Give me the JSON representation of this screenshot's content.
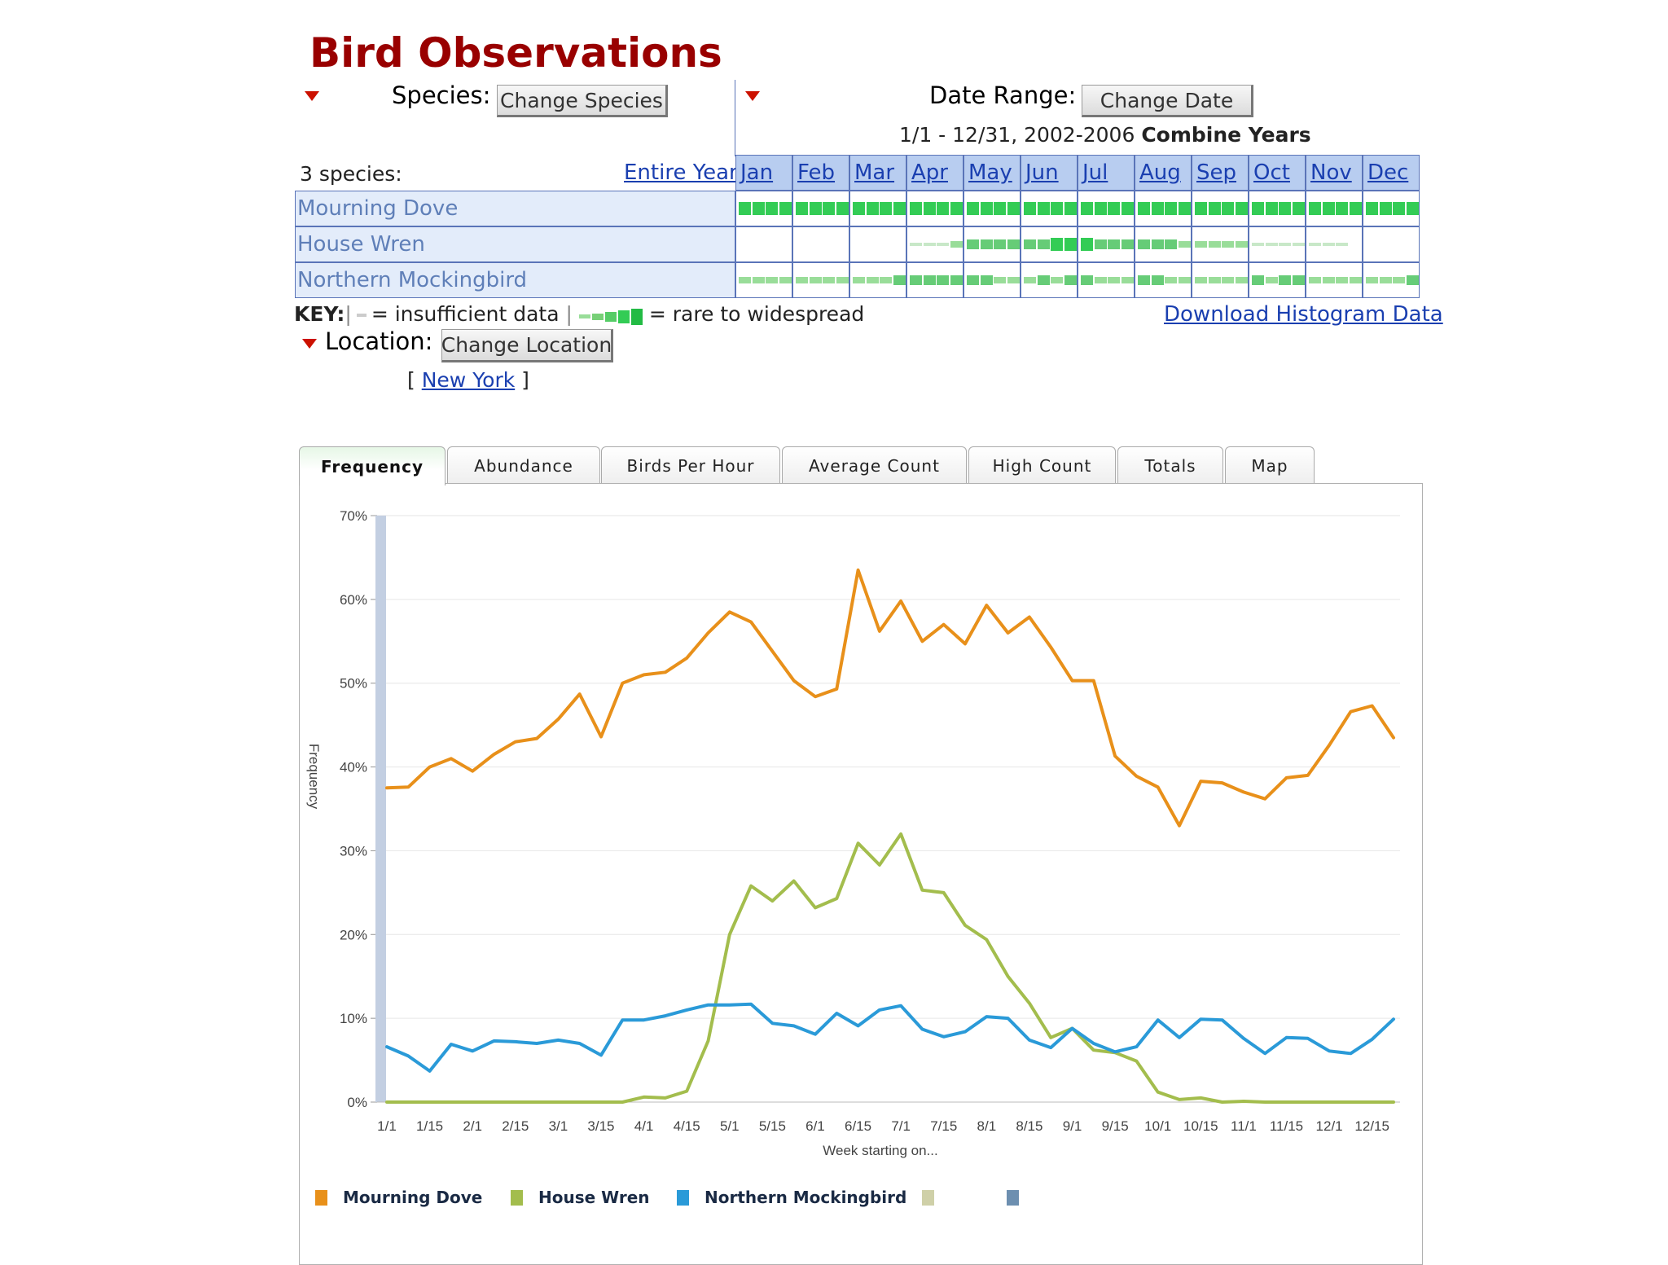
{
  "page_title": "Bird Observations",
  "species_section": {
    "label": "Species:",
    "button": "Change Species",
    "count_label": "3 species:",
    "entire_year": "Entire Year"
  },
  "date_section": {
    "label": "Date Range:",
    "button": "Change Date",
    "range_text": "1/1 - 12/31, 2002-2006",
    "range_bold": "Combine Years"
  },
  "months": [
    "Jan",
    "Feb",
    "Mar",
    "Apr",
    "May",
    "Jun",
    "Jul",
    "Aug",
    "Sep",
    "Oct",
    "Nov",
    "Dec"
  ],
  "species": [
    "Mourning Dove",
    "House Wren",
    "Northern Mockingbird"
  ],
  "key": {
    "prefix": "KEY:",
    "insufficient": "= insufficient data",
    "rare": "= rare to widespread"
  },
  "download_link": "Download Histogram Data",
  "location_section": {
    "label": "Location:",
    "button": "Change Location",
    "bracket_open": "[",
    "link": "New York",
    "bracket_close": "]"
  },
  "tabs": [
    "Frequency",
    "Abundance",
    "Birds Per Hour",
    "Average Count",
    "High Count",
    "Totals",
    "Map"
  ],
  "active_tab": "Frequency",
  "colors": {
    "title": "#990000",
    "dove": "#e8901a",
    "wren": "#a3bd4d",
    "mockingbird": "#2a9ad8",
    "histogram_green": "#33cc55",
    "histogram_light": "#99dd99"
  },
  "chart_data": {
    "type": "line",
    "ylabel": "Frequency",
    "xlabel": "Week starting on...",
    "ylim": [
      0,
      70
    ],
    "y_ticks": [
      "0%",
      "10%",
      "20%",
      "30%",
      "40%",
      "50%",
      "60%",
      "70%"
    ],
    "x_ticks": [
      "1/1",
      "1/15",
      "2/1",
      "2/15",
      "3/1",
      "3/15",
      "4/1",
      "4/15",
      "5/1",
      "5/15",
      "6/1",
      "6/15",
      "7/1",
      "7/15",
      "8/1",
      "8/15",
      "9/1",
      "9/15",
      "10/1",
      "10/15",
      "11/1",
      "11/15",
      "12/1",
      "12/15"
    ],
    "grid": true,
    "legend_position": "bottom",
    "series": [
      {
        "name": "Mourning Dove",
        "color": "#e8901a",
        "values": [
          37.5,
          37.6,
          40,
          41,
          39.5,
          41.5,
          43,
          43.4,
          45.7,
          48.7,
          43.6,
          50,
          51,
          51.3,
          53,
          56,
          58.5,
          57.3,
          53.8,
          50.3,
          48.4,
          49.3,
          63.5,
          56.2,
          59.8,
          55,
          57,
          54.7,
          59.3,
          56,
          57.9,
          54.3,
          50.3,
          50.3,
          41.3,
          38.9,
          37.6,
          33,
          38.3,
          38.1,
          37,
          36.2,
          38.7,
          39,
          42.6,
          46.6,
          47.3,
          43.5
        ]
      },
      {
        "name": "House Wren",
        "color": "#a3bd4d",
        "values": [
          0,
          0,
          0,
          0,
          0,
          0,
          0,
          0,
          0,
          0,
          0,
          0,
          0.6,
          0.5,
          1.3,
          7.3,
          20,
          25.8,
          24,
          26.4,
          23.2,
          24.3,
          30.9,
          28.3,
          32,
          25.3,
          25,
          21.1,
          19.4,
          15,
          11.8,
          7.7,
          8.8,
          6.2,
          5.9,
          4.9,
          1.2,
          0.3,
          0.5,
          0,
          0.1,
          0,
          0,
          0,
          0,
          0,
          0,
          0
        ]
      },
      {
        "name": "Northern Mockingbird",
        "color": "#2a9ad8",
        "values": [
          6.6,
          5.5,
          3.7,
          6.9,
          6.1,
          7.3,
          7.2,
          7,
          7.4,
          7,
          5.6,
          9.8,
          9.8,
          10.3,
          11,
          11.6,
          11.6,
          11.7,
          9.4,
          9.1,
          8.1,
          10.6,
          9.1,
          11,
          11.5,
          8.7,
          7.8,
          8.4,
          10.2,
          10,
          7.4,
          6.5,
          8.8,
          7,
          6,
          6.6,
          9.8,
          7.7,
          9.9,
          9.8,
          7.6,
          5.8,
          7.7,
          7.6,
          6.1,
          5.8,
          7.5,
          9.9
        ]
      }
    ]
  }
}
